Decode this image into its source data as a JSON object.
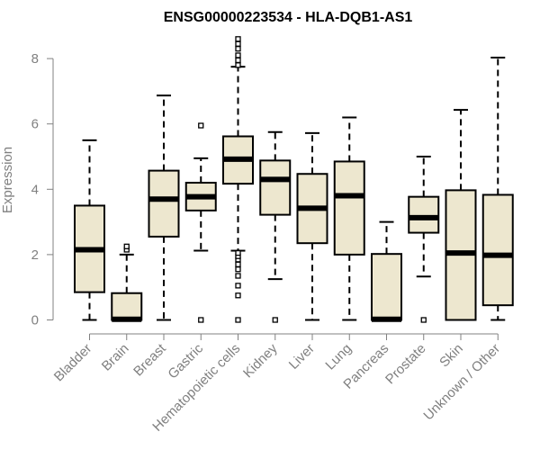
{
  "chart_data": {
    "type": "boxplot",
    "title": "ENSG00000223534 - HLA-DQB1-AS1",
    "xlabel": "",
    "ylabel": "Expression",
    "ylim": [
      0,
      8.8
    ],
    "yticks": [
      0,
      2,
      4,
      6,
      8
    ],
    "colors": {
      "box_fill": "#ede7cf",
      "stroke": "#000000",
      "axis": "#808080"
    },
    "categories": [
      "Bladder",
      "Brain",
      "Breast",
      "Gastric",
      "Hematopoietic cells",
      "Kidney",
      "Liver",
      "Lung",
      "Pancreas",
      "Prostate",
      "Skin",
      "Unknown / Other"
    ],
    "boxes": [
      {
        "category": "Bladder",
        "whisker_low": 0,
        "q1": 0.85,
        "median": 2.15,
        "q3": 3.5,
        "whisker_high": 5.5,
        "outliers": []
      },
      {
        "category": "Brain",
        "whisker_low": 0,
        "q1": 0,
        "median": 0.02,
        "q3": 0.82,
        "whisker_high": 2.0,
        "outliers": [
          2.15,
          2.25
        ]
      },
      {
        "category": "Breast",
        "whisker_low": 0,
        "q1": 2.55,
        "median": 3.7,
        "q3": 4.57,
        "whisker_high": 6.87,
        "outliers": []
      },
      {
        "category": "Gastric",
        "whisker_low": 2.12,
        "q1": 3.35,
        "median": 3.77,
        "q3": 4.2,
        "whisker_high": 4.95,
        "outliers": [
          0,
          5.95
        ]
      },
      {
        "category": "Hematopoietic cells",
        "whisker_low": 2.12,
        "q1": 4.17,
        "median": 4.92,
        "q3": 5.62,
        "whisker_high": 7.75,
        "outliers": [
          0,
          0.75,
          1.05,
          1.35,
          1.55,
          1.7,
          1.85,
          1.95,
          2.05,
          7.8,
          7.95,
          8.1,
          8.3,
          8.45,
          8.6
        ]
      },
      {
        "category": "Kidney",
        "whisker_low": 1.25,
        "q1": 3.22,
        "median": 4.3,
        "q3": 4.88,
        "whisker_high": 5.75,
        "outliers": [
          0
        ]
      },
      {
        "category": "Liver",
        "whisker_low": 0,
        "q1": 2.35,
        "median": 3.42,
        "q3": 4.47,
        "whisker_high": 5.72,
        "outliers": []
      },
      {
        "category": "Lung",
        "whisker_low": 0,
        "q1": 2.0,
        "median": 3.8,
        "q3": 4.85,
        "whisker_high": 6.2,
        "outliers": []
      },
      {
        "category": "Pancreas",
        "whisker_low": 0,
        "q1": 0,
        "median": 0.02,
        "q3": 2.02,
        "whisker_high": 3.0,
        "outliers": []
      },
      {
        "category": "Prostate",
        "whisker_low": 1.33,
        "q1": 2.67,
        "median": 3.13,
        "q3": 3.77,
        "whisker_high": 5.0,
        "outliers": [
          0
        ]
      },
      {
        "category": "Skin",
        "whisker_low": 0,
        "q1": 0,
        "median": 2.05,
        "q3": 3.97,
        "whisker_high": 6.43,
        "outliers": []
      },
      {
        "category": "Unknown / Other",
        "whisker_low": 0,
        "q1": 0.45,
        "median": 1.98,
        "q3": 3.83,
        "whisker_high": 8.03,
        "outliers": []
      }
    ]
  }
}
